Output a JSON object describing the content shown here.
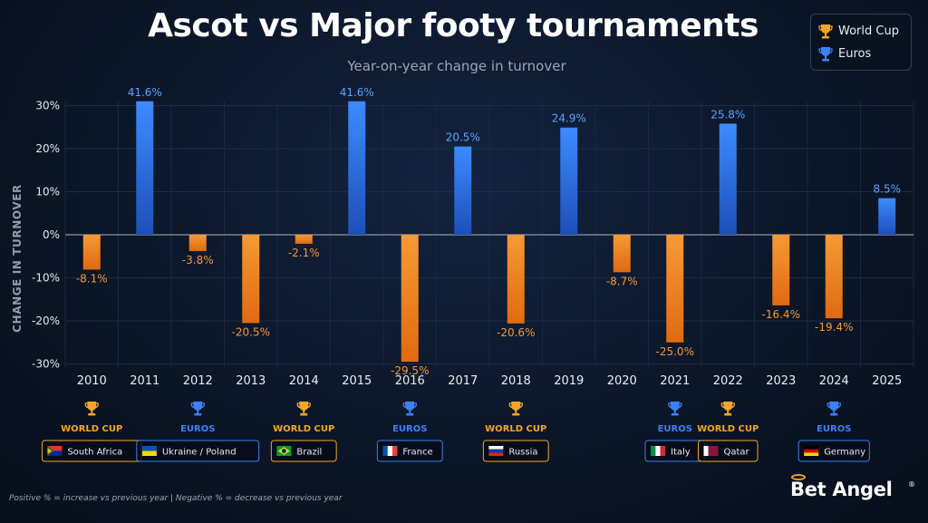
{
  "header": {
    "title": "Ascot vs Major footy tournaments",
    "subtitle": "Year-on-year change in turnover"
  },
  "legend": [
    {
      "label": "World Cup",
      "icon": "trophy-icon",
      "color": "#f5a623"
    },
    {
      "label": "Euros",
      "icon": "trophy-icon",
      "color": "#3b82f6"
    }
  ],
  "colors": {
    "positive": "#2a6fe8",
    "negative": "#f08a24",
    "world_cup": "#f5a623",
    "euros": "#3b82f6"
  },
  "chart_data": {
    "type": "bar",
    "ylabel": "CHANGE IN TURNOVER",
    "ylim": [
      -30,
      30
    ],
    "yticks": [
      30,
      20,
      10,
      0,
      -10,
      -20,
      -30
    ],
    "ytick_labels": [
      "30%",
      "20%",
      "10%",
      "0%",
      "-10%",
      "-20%",
      "-30%"
    ],
    "categories": [
      "2010",
      "2011",
      "2012",
      "2013",
      "2014",
      "2015",
      "2016",
      "2017",
      "2018",
      "2019",
      "2020",
      "2021",
      "2022",
      "2023",
      "2024",
      "2025"
    ],
    "values": [
      -8.1,
      41.6,
      -3.8,
      -20.5,
      -2.1,
      41.6,
      -29.5,
      20.5,
      -20.6,
      24.9,
      -8.7,
      -25.0,
      25.8,
      -16.4,
      -19.4,
      8.5
    ],
    "value_labels": [
      "-8.1%",
      "41.6%",
      "-3.8%",
      "-20.5%",
      "-2.1%",
      "41.6%",
      "-29.5%",
      "20.5%",
      "-20.6%",
      "24.9%",
      "-8.7%",
      "-25.0%",
      "25.8%",
      "-16.4%",
      "-19.4%",
      "8.5%"
    ],
    "grid": true,
    "legend_position": "top-right",
    "tournaments": [
      {
        "year": "2010",
        "type": "world_cup",
        "label": "WORLD CUP",
        "host": "South Africa",
        "flag": "south-africa-flag-icon"
      },
      {
        "year": "2012",
        "type": "euros",
        "label": "EUROS",
        "host": "Ukraine / Poland",
        "flag": "ukraine-flag-icon"
      },
      {
        "year": "2014",
        "type": "world_cup",
        "label": "WORLD CUP",
        "host": "Brazil",
        "flag": "brazil-flag-icon"
      },
      {
        "year": "2016",
        "type": "euros",
        "label": "EUROS",
        "host": "France",
        "flag": "france-flag-icon"
      },
      {
        "year": "2018",
        "type": "world_cup",
        "label": "WORLD CUP",
        "host": "Russia",
        "flag": "russia-flag-icon"
      },
      {
        "year": "2021",
        "type": "euros",
        "label": "EUROS",
        "host": "Italy",
        "flag": "italy-flag-icon"
      },
      {
        "year": "2022",
        "type": "world_cup",
        "label": "WORLD CUP",
        "host": "Qatar",
        "flag": "qatar-flag-icon"
      },
      {
        "year": "2024",
        "type": "euros",
        "label": "EUROS",
        "host": "Germany",
        "flag": "germany-flag-icon"
      }
    ]
  },
  "footer": {
    "note": "Positive % = increase vs previous year   |   Negative % = decrease vs previous year",
    "brand": "Bet Angel",
    "brand_mark": "®"
  }
}
